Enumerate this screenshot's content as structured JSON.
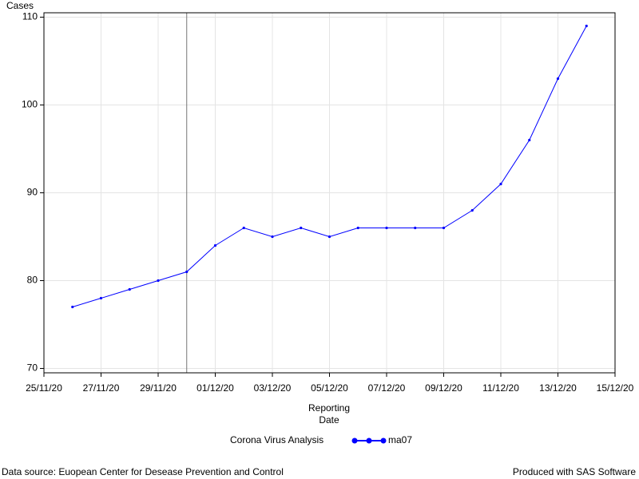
{
  "chart_data": {
    "type": "line",
    "ylabel": "Cases",
    "xlabel": "Reporting Date",
    "x": [
      "26/11/20",
      "27/11/20",
      "28/11/20",
      "29/11/20",
      "30/11/20",
      "01/12/20",
      "02/12/20",
      "03/12/20",
      "04/12/20",
      "05/12/20",
      "06/12/20",
      "07/12/20",
      "08/12/20",
      "09/12/20",
      "10/12/20",
      "11/12/20",
      "12/12/20",
      "13/12/20",
      "14/12/20"
    ],
    "series": [
      {
        "name": "ma07",
        "color": "#0000ff",
        "values": [
          77,
          78,
          79,
          80,
          81,
          84,
          86,
          85,
          86,
          85,
          86,
          86,
          86,
          86,
          88,
          91,
          96,
          103,
          109
        ]
      }
    ],
    "legend_title": "Corona Virus Analysis",
    "xlim": [
      "25/11/20",
      "15/12/20"
    ],
    "xticks": [
      "25/11/20",
      "27/11/20",
      "29/11/20",
      "01/12/20",
      "03/12/20",
      "05/12/20",
      "07/12/20",
      "09/12/20",
      "11/12/20",
      "13/12/20",
      "15/12/20"
    ],
    "ylim": [
      69.5,
      110.5
    ],
    "yticks": [
      70,
      80,
      90,
      100,
      110
    ],
    "reference_line_x": "30/11/20",
    "grid": true,
    "footnote_left": "Data source: Euopean Center for Desease Prevention and Control",
    "footnote_right": "Produced with SAS Software"
  }
}
